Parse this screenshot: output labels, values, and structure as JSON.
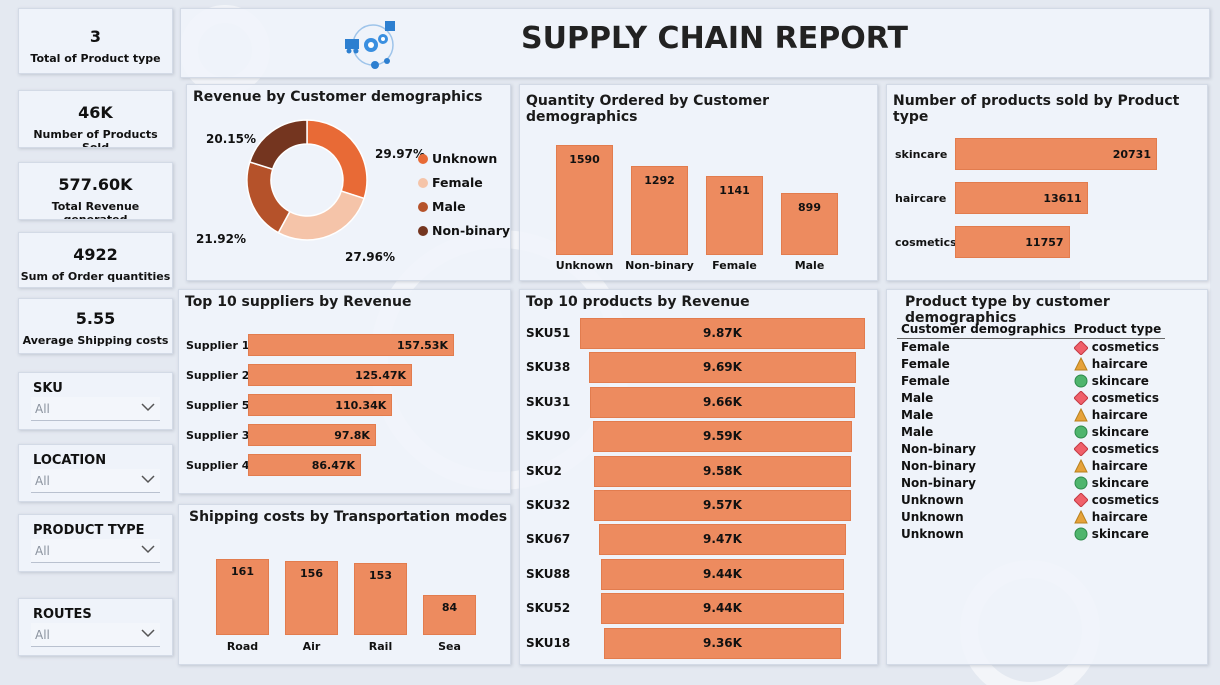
{
  "header": {
    "title": "SUPPLY CHAIN REPORT",
    "logo_icon": "supply-chain-logo-icon"
  },
  "kpis": [
    {
      "value": "3",
      "label": "Total  of Product type"
    },
    {
      "value": "46K",
      "label": "Number of Products Sold"
    },
    {
      "value": "577.60K",
      "label": "Total Revenue generated"
    },
    {
      "value": "4922",
      "label": "Sum of Order quantities"
    },
    {
      "value": "5.55",
      "label": "Average Shipping costs"
    }
  ],
  "slicers": [
    {
      "title": "SKU",
      "value": "All"
    },
    {
      "title": "LOCATION",
      "value": "All"
    },
    {
      "title": "PRODUCT TYPE",
      "value": "All"
    },
    {
      "title": "ROUTES",
      "value": "All"
    }
  ],
  "colors": {
    "bar": "#ed8b5f",
    "unknown": "#e86a36",
    "female": "#f5c4a9",
    "male": "#b5522a",
    "nonbinary": "#74351f"
  },
  "revenue_demo": {
    "title": "Revenue by Customer demographics",
    "labels": {
      "unknown": "29.97%",
      "female": "27.96%",
      "male": "21.92%",
      "nonbinary": "20.15%"
    },
    "legend": [
      "Unknown",
      "Female",
      "Male",
      "Non-binary"
    ]
  },
  "quantity_demo": {
    "title": "Quantity Ordered by Customer demographics",
    "labels": [
      "1590",
      "1292",
      "1141",
      "899"
    ]
  },
  "products_sold": {
    "title": "Number of products sold by Product type",
    "labels": [
      "20731",
      "13611",
      "11757"
    ]
  },
  "suppliers": {
    "title": "Top 10 suppliers by Revenue",
    "labels": [
      "157.53K",
      "125.47K",
      "110.34K",
      "97.8K",
      "86.47K"
    ]
  },
  "top_products": {
    "title": "Top 10 products by Revenue",
    "labels": [
      "9.87K",
      "9.69K",
      "9.66K",
      "9.59K",
      "9.58K",
      "9.57K",
      "9.47K",
      "9.44K",
      "9.44K",
      "9.36K"
    ]
  },
  "shipping": {
    "title": "Shipping costs by Transportation modes",
    "labels": [
      "161",
      "156",
      "153",
      "84"
    ]
  },
  "product_table": {
    "title": "Product type by customer demographics",
    "headers": [
      "Customer demographics",
      "Product type"
    ],
    "rows": [
      {
        "demo": "Female",
        "type": "cosmetics",
        "shape": "diamond-icon"
      },
      {
        "demo": "Female",
        "type": "haircare",
        "shape": "triangle-icon"
      },
      {
        "demo": "Female",
        "type": "skincare",
        "shape": "circle-icon"
      },
      {
        "demo": "Male",
        "type": "cosmetics",
        "shape": "diamond-icon"
      },
      {
        "demo": "Male",
        "type": "haircare",
        "shape": "triangle-icon"
      },
      {
        "demo": "Male",
        "type": "skincare",
        "shape": "circle-icon"
      },
      {
        "demo": "Non-binary",
        "type": "cosmetics",
        "shape": "diamond-icon"
      },
      {
        "demo": "Non-binary",
        "type": "haircare",
        "shape": "triangle-icon"
      },
      {
        "demo": "Non-binary",
        "type": "skincare",
        "shape": "circle-icon"
      },
      {
        "demo": "Unknown",
        "type": "cosmetics",
        "shape": "diamond-icon"
      },
      {
        "demo": "Unknown",
        "type": "haircare",
        "shape": "triangle-icon"
      },
      {
        "demo": "Unknown",
        "type": "skincare",
        "shape": "circle-icon"
      }
    ]
  },
  "chart_data": [
    {
      "type": "pie",
      "title": "Revenue by Customer demographics",
      "categories": [
        "Unknown",
        "Female",
        "Male",
        "Non-binary"
      ],
      "values": [
        29.97,
        27.96,
        21.92,
        20.15
      ]
    },
    {
      "type": "bar",
      "title": "Quantity Ordered by Customer demographics",
      "categories": [
        "Unknown",
        "Non-binary",
        "Female",
        "Male"
      ],
      "values": [
        1590,
        1292,
        1141,
        899
      ]
    },
    {
      "type": "bar",
      "title": "Number of products sold by Product type",
      "categories": [
        "skincare",
        "haircare",
        "cosmetics"
      ],
      "values": [
        20731,
        13611,
        11757
      ]
    },
    {
      "type": "bar",
      "title": "Top 10 suppliers by Revenue",
      "categories": [
        "Supplier 1",
        "Supplier 2",
        "Supplier 5",
        "Supplier 3",
        "Supplier 4"
      ],
      "values": [
        157.53,
        125.47,
        110.34,
        97.8,
        86.47
      ]
    },
    {
      "type": "bar",
      "title": "Top 10 products by Revenue",
      "categories": [
        "SKU51",
        "SKU38",
        "SKU31",
        "SKU90",
        "SKU2",
        "SKU32",
        "SKU67",
        "SKU88",
        "SKU52",
        "SKU18"
      ],
      "values": [
        9.87,
        9.69,
        9.66,
        9.59,
        9.58,
        9.57,
        9.47,
        9.44,
        9.44,
        9.36
      ]
    },
    {
      "type": "bar",
      "title": "Shipping costs by Transportation modes",
      "categories": [
        "Road",
        "Air",
        "Rail",
        "Sea"
      ],
      "values": [
        161,
        156,
        153,
        84
      ]
    }
  ]
}
